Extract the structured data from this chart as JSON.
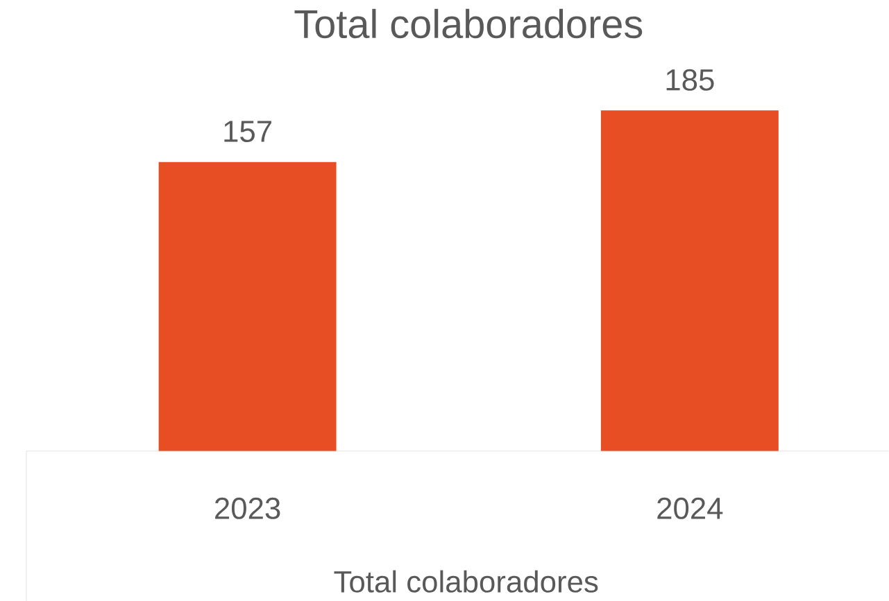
{
  "chart_data": {
    "type": "bar",
    "title": "Total colaboradores",
    "xlabel": "Total colaboradores",
    "categories": [
      "2023",
      "2024"
    ],
    "values": [
      157,
      185
    ],
    "color": "#e84e24",
    "tick_labels": "x",
    "data_labels": true,
    "grid": false
  }
}
